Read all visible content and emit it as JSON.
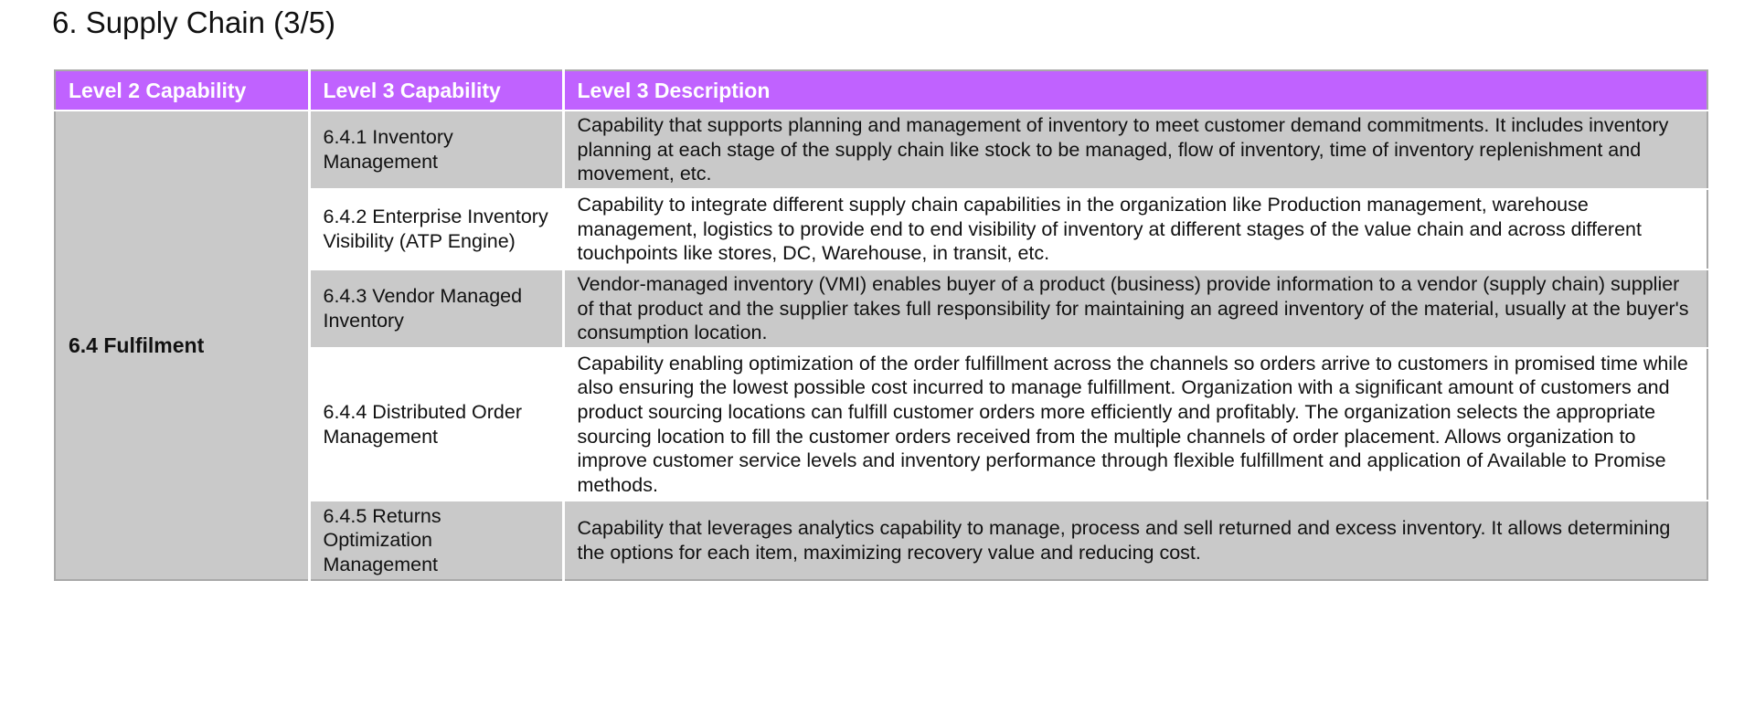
{
  "page": {
    "title": "6. Supply Chain (3/5)"
  },
  "colors": {
    "header_bg": "#c062ff",
    "header_text": "#ffffff",
    "shaded_row": "#c9c9c9",
    "plain_row": "#ffffff",
    "border": "#a9a9a9"
  },
  "table": {
    "headers": [
      "Level 2 Capability",
      "Level 3 Capability",
      "Level 3 Description"
    ],
    "level2": "6.4 Fulfilment",
    "rows": [
      {
        "level3": "6.4.1 Inventory Management",
        "description": "Capability that supports planning and management of inventory to meet customer demand commitments. It includes inventory planning at each stage of the supply chain like stock to be managed, flow of inventory, time of inventory replenishment and movement, etc."
      },
      {
        "level3": "6.4.2 Enterprise Inventory Visibility (ATP Engine)",
        "description": "Capability to integrate different supply chain capabilities in the organization like Production management, warehouse management, logistics to provide end to end visibility of inventory at different stages of the value chain and across different touchpoints like stores, DC, Warehouse, in transit, etc."
      },
      {
        "level3": "6.4.3 Vendor Managed Inventory",
        "description": "Vendor-managed inventory (VMI) enables buyer of a product (business) provide information to a vendor (supply chain) supplier of that product and the supplier takes full responsibility for maintaining an agreed inventory of the material, usually at the buyer's consumption location."
      },
      {
        "level3": "6.4.4 Distributed Order Management",
        "description": "Capability enabling optimization of the order fulfillment across the channels so orders arrive to customers in promised time while also ensuring the lowest possible cost incurred to manage fulfillment. Organization with a significant amount of customers and product sourcing locations can fulfill customer orders more efficiently and profitably. The organization selects the appropriate sourcing location to fill the customer orders received from the multiple channels of order placement. Allows organization to improve customer service levels and inventory performance through flexible fulfillment and application of Available to Promise methods."
      },
      {
        "level3": "6.4.5 Returns Optimization Management",
        "description": "Capability that leverages analytics capability to manage, process and sell returned and excess inventory. It allows determining the options for each item, maximizing recovery value and reducing cost."
      }
    ]
  }
}
